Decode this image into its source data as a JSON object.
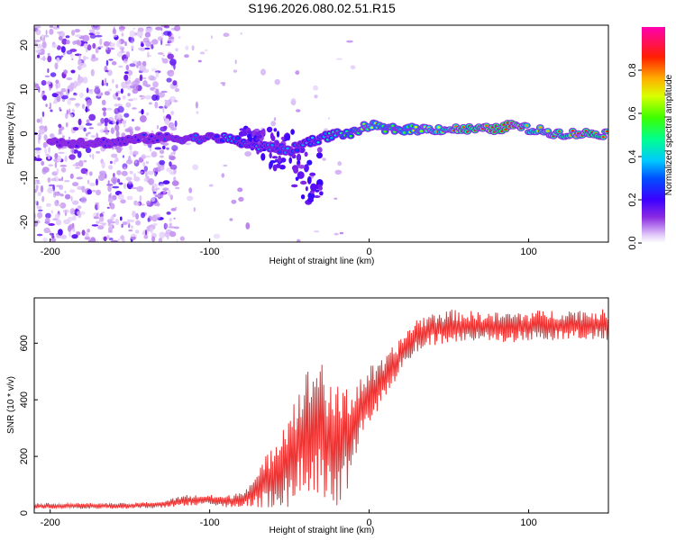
{
  "title": "S196.2026.080.02.51.R15",
  "chart_data": [
    {
      "type": "heatmap",
      "name": "spectrogram",
      "xlabel": "Height of straight line (km)",
      "ylabel": "Frequency (Hz)",
      "xlim": [
        -210,
        150
      ],
      "ylim": [
        -24.5,
        24.5
      ],
      "xticks": [
        -200,
        -100,
        0,
        100
      ],
      "yticks": [
        -20,
        -10,
        0,
        10,
        20
      ],
      "colorbar": {
        "label": "Normalized spectral amplitude",
        "range": [
          0,
          1
        ],
        "ticks": [
          "0.0",
          "0.2",
          "0.4",
          "0.6",
          "0.8"
        ]
      },
      "ridge": {
        "x": [
          -200,
          -180,
          -160,
          -140,
          -120,
          -100,
          -90,
          -80,
          -70,
          -60,
          -50,
          -40,
          -30,
          -20,
          -10,
          0,
          10,
          20,
          40,
          60,
          80,
          90,
          100,
          120,
          140,
          150
        ],
        "freq": [
          -2,
          -2,
          -2,
          -1,
          -1,
          -1,
          -1,
          -2,
          -3,
          -3,
          -4,
          -2,
          -1,
          0,
          0,
          2,
          1,
          1,
          1,
          1,
          1,
          2,
          1,
          0,
          0,
          0
        ],
        "amplitude": [
          0.15,
          0.15,
          0.18,
          0.2,
          0.25,
          0.3,
          0.35,
          0.35,
          0.35,
          0.3,
          0.3,
          0.35,
          0.4,
          0.45,
          0.55,
          0.65,
          0.6,
          0.6,
          0.7,
          0.85,
          0.9,
          0.95,
          0.75,
          0.8,
          0.85,
          0.85
        ]
      }
    },
    {
      "type": "line",
      "name": "snr",
      "xlabel": "Height of straight line (km)",
      "ylabel": "SNR (10 * v/v)",
      "xlim": [
        -210,
        150
      ],
      "ylim": [
        0,
        760
      ],
      "xticks": [
        -200,
        -100,
        0,
        100
      ],
      "yticks": [
        0,
        200,
        400,
        600
      ],
      "color": "#ee3333",
      "series": [
        {
          "name": "SNR",
          "x": [
            -210,
            -190,
            -170,
            -150,
            -130,
            -115,
            -100,
            -90,
            -80,
            -70,
            -60,
            -50,
            -45,
            -40,
            -35,
            -30,
            -25,
            -20,
            -15,
            -10,
            -5,
            0,
            5,
            10,
            15,
            20,
            25,
            30,
            40,
            50,
            60,
            80,
            100,
            120,
            140,
            150
          ],
          "base": [
            25,
            25,
            25,
            25,
            30,
            45,
            45,
            40,
            50,
            80,
            140,
            200,
            240,
            280,
            300,
            320,
            250,
            230,
            260,
            300,
            370,
            420,
            440,
            470,
            520,
            560,
            600,
            630,
            650,
            660,
            660,
            655,
            660,
            665,
            665,
            665
          ],
          "amplitude": [
            10,
            10,
            10,
            10,
            12,
            20,
            20,
            20,
            30,
            60,
            120,
            180,
            200,
            220,
            240,
            260,
            200,
            220,
            200,
            160,
            120,
            100,
            90,
            80,
            70,
            60,
            60,
            60,
            60,
            60,
            55,
            55,
            55,
            55,
            55,
            55
          ]
        }
      ]
    }
  ]
}
